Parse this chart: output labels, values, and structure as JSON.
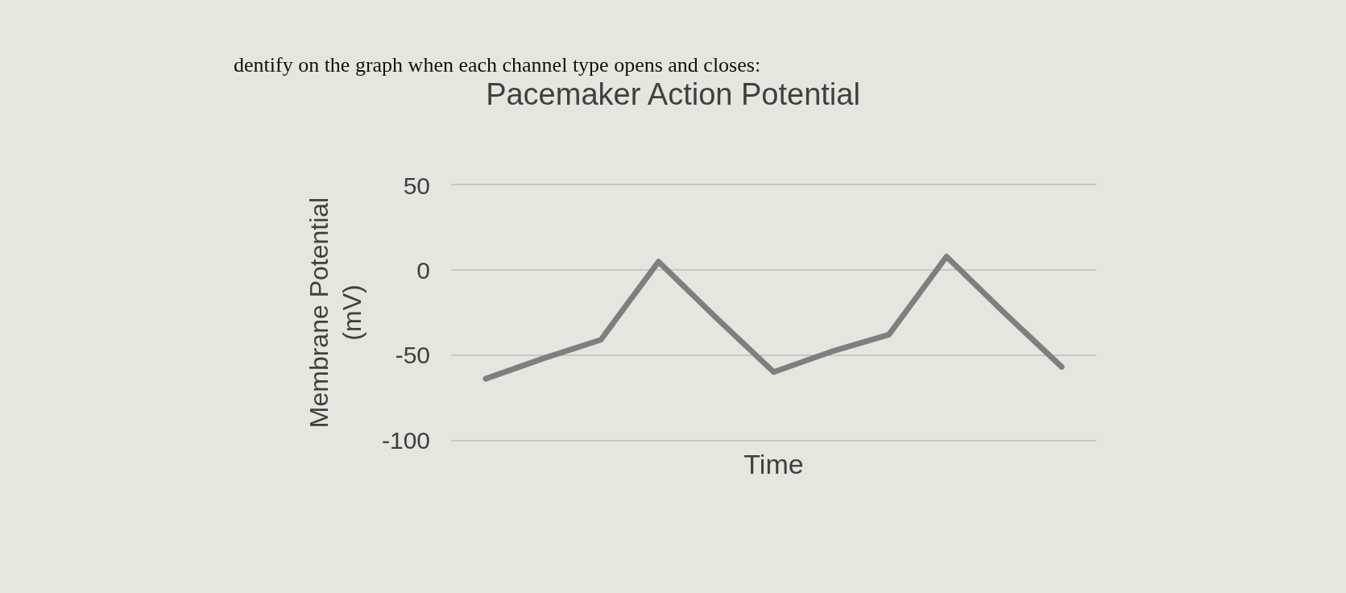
{
  "chart_data": {
    "type": "line",
    "title": "Pacemaker Action Potential",
    "xlabel": "Time",
    "ylabel": "Membrane Potential (mV)",
    "annotations": [
      "dentify on the graph when each channel type opens and closes:"
    ],
    "categories": [
      null,
      null,
      null,
      null,
      null,
      null,
      null,
      null,
      null,
      null,
      null
    ],
    "series": [
      {
        "color": "#7f7f7f",
        "values": [
          -64,
          -52,
          -41,
          5,
          -28,
          -60,
          -48,
          -38,
          8,
          -25,
          -57
        ]
      }
    ],
    "ylim": [
      -100,
      50
    ],
    "yticks": [
      -100,
      -50,
      0,
      50
    ],
    "grid": "y",
    "marker": "none",
    "line_style": "solid"
  }
}
